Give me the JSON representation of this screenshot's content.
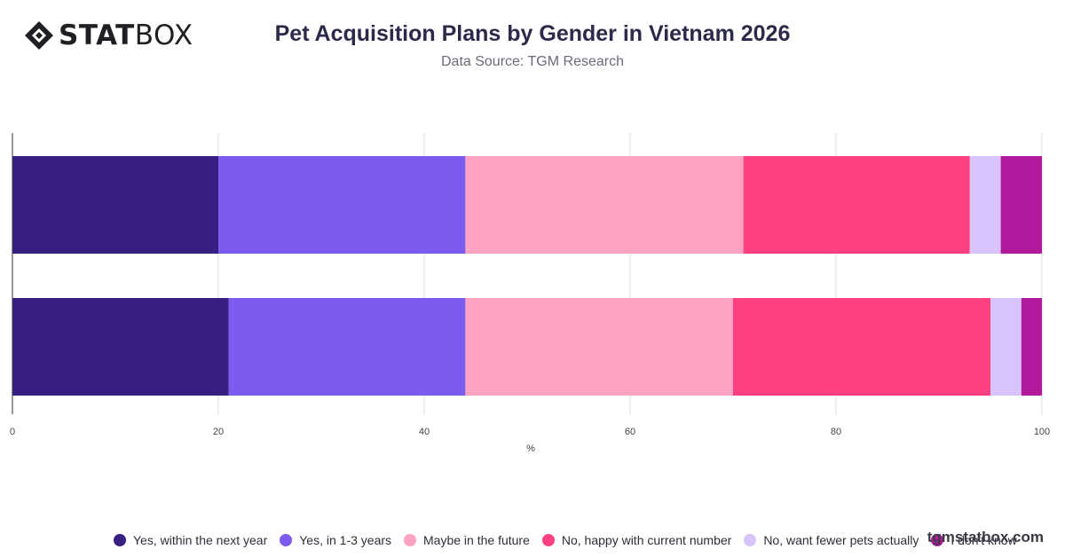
{
  "header": {
    "logo_bold": "STAT",
    "logo_light": "BOX",
    "title": "Pet Acquisition Plans by Gender in Vietnam 2026",
    "subtitle": "Data Source: TGM Research"
  },
  "footer": {
    "watermark": "tgmstatbox.com"
  },
  "colors": {
    "logo": "#1f1f24",
    "grid": "#dcdcdc",
    "axis": "#333333"
  },
  "chart_data": {
    "type": "bar",
    "orientation": "horizontal",
    "stacked": true,
    "title": "Pet Acquisition Plans by Gender in Vietnam 2026",
    "subtitle": "Data Source: TGM Research",
    "categories": [
      "",
      ""
    ],
    "xlabel": "%",
    "ylabel": "",
    "xlim": [
      0,
      100
    ],
    "xticks": [
      "0",
      "20",
      "40",
      "60",
      "80",
      "100"
    ],
    "grid": true,
    "legend": "bottom",
    "series": [
      {
        "name": "Yes, within the next year",
        "color": "#371e81",
        "values": [
          20,
          21
        ]
      },
      {
        "name": "Yes, in 1-3 years",
        "color": "#7c5cee",
        "values": [
          24,
          23
        ]
      },
      {
        "name": "Maybe in the future",
        "color": "#fca3c4",
        "values": [
          27,
          26
        ]
      },
      {
        "name": "No, happy with current number",
        "color": "#ff4081",
        "values": [
          22,
          25
        ]
      },
      {
        "name": "No, want fewer pets actually",
        "color": "#d6c4fa",
        "values": [
          3,
          3
        ]
      },
      {
        "name": "I don't know",
        "color": "#b0199b",
        "values": [
          4,
          2
        ]
      }
    ]
  }
}
